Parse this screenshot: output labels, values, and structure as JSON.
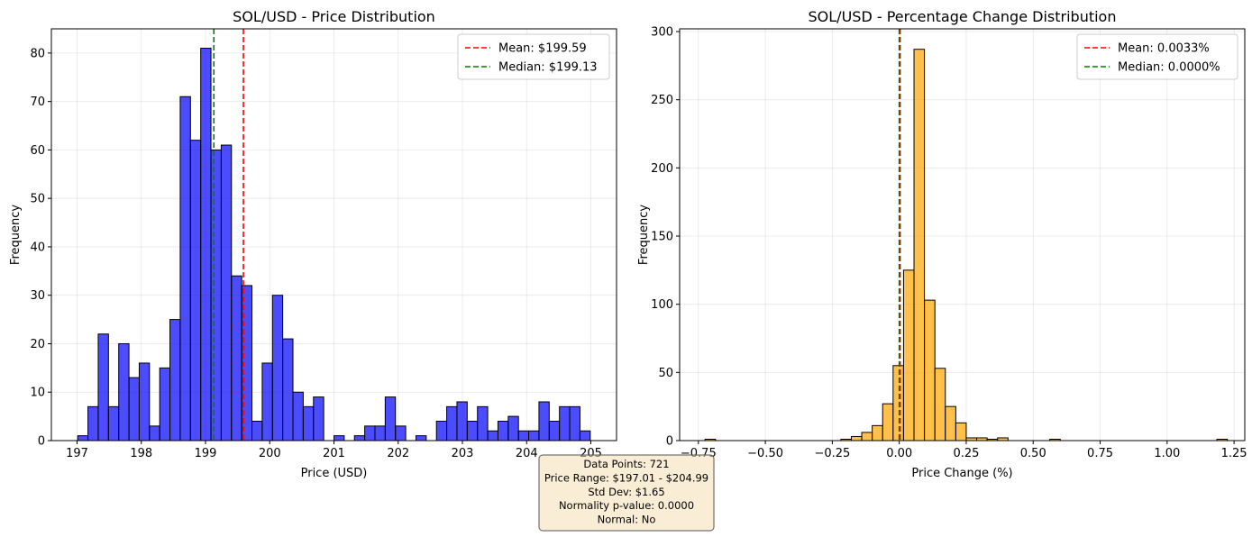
{
  "chart_data": [
    {
      "type": "bar",
      "subtype": "histogram",
      "title": "SOL/USD - Price Distribution",
      "xlabel": "Price (USD)",
      "ylabel": "Frequency",
      "xlim": [
        196.6,
        205.4
      ],
      "ylim": [
        0,
        85
      ],
      "x_ticks": [
        197,
        198,
        199,
        200,
        201,
        202,
        203,
        204,
        205
      ],
      "x_tick_labels": [
        "197",
        "198",
        "199",
        "200",
        "201",
        "202",
        "203",
        "204",
        "205"
      ],
      "y_ticks": [
        0,
        10,
        20,
        30,
        40,
        50,
        60,
        70,
        80
      ],
      "y_tick_labels": [
        "0",
        "10",
        "20",
        "30",
        "40",
        "50",
        "60",
        "70",
        "80"
      ],
      "grid": true,
      "bar_color": "#0000ff",
      "bar_edge_color": "#000000",
      "bins": {
        "start": 197.01,
        "end": 204.99,
        "counts": [
          1,
          7,
          22,
          7,
          20,
          13,
          16,
          3,
          15,
          25,
          71,
          62,
          81,
          60,
          61,
          34,
          32,
          4,
          16,
          30,
          21,
          10,
          7,
          9,
          0,
          1,
          0,
          1,
          3,
          3,
          9,
          3,
          0,
          1,
          0,
          4,
          7,
          8,
          4,
          7,
          2,
          4,
          5,
          2,
          2,
          8,
          4,
          7,
          7,
          2
        ]
      },
      "reference_lines": [
        {
          "label": "Mean: $199.59",
          "value": 199.59,
          "color": "#ff0000",
          "style": "dashed"
        },
        {
          "label": "Median: $199.13",
          "value": 199.13,
          "color": "#008000",
          "style": "dashed"
        }
      ],
      "legend": {
        "position": "top-right",
        "entries": [
          "Mean: $199.59",
          "Median: $199.13"
        ]
      }
    },
    {
      "type": "bar",
      "subtype": "histogram",
      "title": "SOL/USD - Percentage Change Distribution",
      "xlabel": "Price Change (%)",
      "ylabel": "Frequency",
      "xlim": [
        -0.82,
        1.29
      ],
      "ylim": [
        0,
        302
      ],
      "x_ticks": [
        -0.75,
        -0.5,
        -0.25,
        0.0,
        0.25,
        0.5,
        0.75,
        1.0,
        1.25
      ],
      "x_tick_labels": [
        "−0.75",
        "−0.50",
        "−0.25",
        "0.00",
        "0.25",
        "0.50",
        "0.75",
        "1.00",
        "1.25"
      ],
      "y_ticks": [
        0,
        50,
        100,
        150,
        200,
        250,
        300
      ],
      "y_tick_labels": [
        "0",
        "50",
        "100",
        "150",
        "200",
        "250",
        "300"
      ],
      "grid": true,
      "bar_color": "#ffa500",
      "bar_edge_color": "#000000",
      "bins": {
        "start": -0.725,
        "end": 1.225,
        "counts": [
          1,
          0,
          0,
          0,
          0,
          0,
          0,
          0,
          0,
          0,
          0,
          0,
          0,
          1,
          3,
          6,
          11,
          27,
          55,
          125,
          287,
          103,
          53,
          25,
          13,
          2,
          2,
          1,
          2,
          0,
          0,
          0,
          0,
          1,
          0,
          0,
          0,
          0,
          0,
          0,
          0,
          0,
          0,
          0,
          0,
          0,
          0,
          0,
          0,
          1
        ]
      },
      "reference_lines": [
        {
          "label": "Mean: 0.0033%",
          "value": 0.0033,
          "color": "#ff0000",
          "style": "dashed"
        },
        {
          "label": "Median: 0.0000%",
          "value": 0.0,
          "color": "#008000",
          "style": "dashed"
        }
      ],
      "legend": {
        "position": "top-right",
        "entries": [
          "Mean: 0.0033%",
          "Median: 0.0000%"
        ]
      }
    }
  ],
  "stats_box": {
    "lines": [
      "Data Points: 721",
      "Price Range: $197.01 - $204.99",
      "Std Dev: $1.65",
      "Normality p-value: 0.0000",
      "Normal: No"
    ],
    "background": "#f5deb3"
  }
}
